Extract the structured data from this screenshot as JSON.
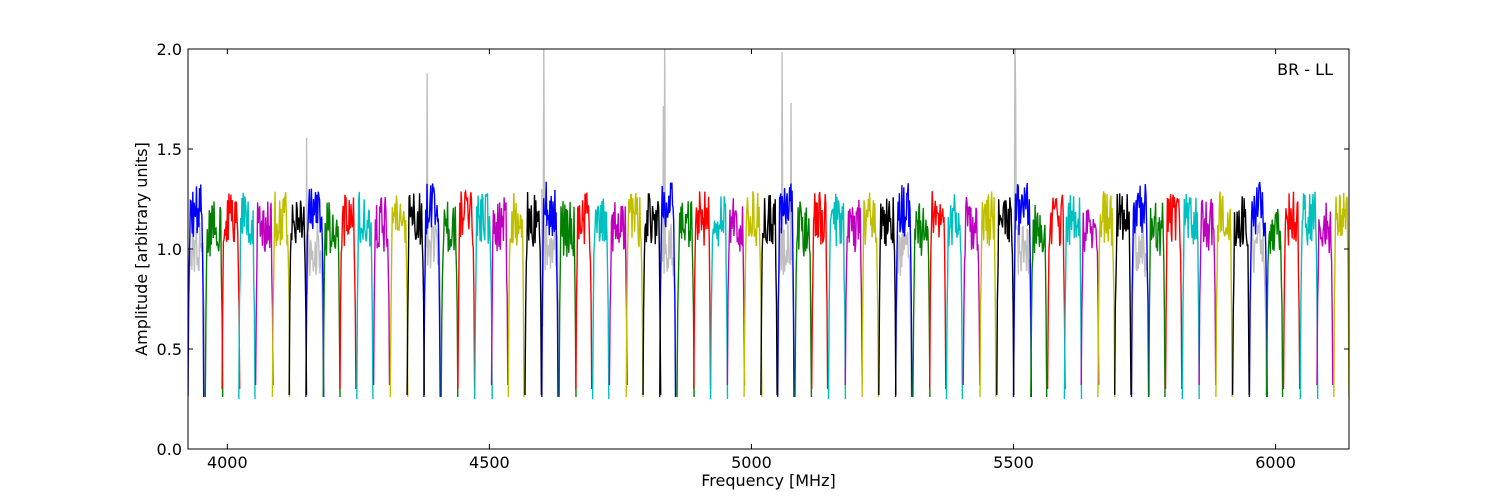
{
  "chart_data": {
    "type": "line",
    "title": "",
    "annotation": "BR - LL",
    "xlabel": "Frequency [MHz]",
    "ylabel": "Amplitude [arbitrary units]",
    "xlim": [
      3925,
      6140
    ],
    "ylim": [
      0.0,
      2.0
    ],
    "x_ticks": [
      4000,
      4500,
      5000,
      5500,
      6000
    ],
    "y_ticks": [
      0.0,
      0.5,
      1.0,
      1.5,
      2.0
    ],
    "x_tick_labels": [
      "4000",
      "4500",
      "5000",
      "5500",
      "6000"
    ],
    "y_tick_labels": [
      "0.0",
      "0.5",
      "1.0",
      "1.5",
      "2.0"
    ],
    "grid": false,
    "legend": "none",
    "series": [
      {
        "color": "#bfbfbf",
        "role": "background",
        "x_start": 3925,
        "x_end": 6140,
        "band_width_mhz": 8,
        "baseline": 1.0,
        "trough": 0.27
      },
      {
        "color": "#0000ff",
        "x_start": 3925,
        "x_end": 6140,
        "band_width_mhz": 8,
        "baseline": 1.2,
        "trough": 0.26
      },
      {
        "color": "#008000",
        "x_start": 3958,
        "x_end": 6140,
        "band_width_mhz": 8,
        "baseline": 1.1,
        "trough": 0.26
      },
      {
        "color": "#ff0000",
        "x_start": 3990,
        "x_end": 6140,
        "band_width_mhz": 8,
        "baseline": 1.15,
        "trough": 0.3
      },
      {
        "color": "#00bfbf",
        "x_start": 4022,
        "x_end": 6140,
        "band_width_mhz": 8,
        "baseline": 1.15,
        "trough": 0.25
      },
      {
        "color": "#bf00bf",
        "x_start": 4054,
        "x_end": 6140,
        "band_width_mhz": 8,
        "baseline": 1.12,
        "trough": 0.32
      },
      {
        "color": "#bfbf00",
        "x_start": 4086,
        "x_end": 6140,
        "band_width_mhz": 8,
        "baseline": 1.15,
        "trough": 0.26
      },
      {
        "color": "#000000",
        "x_start": 4118,
        "x_end": 6140,
        "band_width_mhz": 8,
        "baseline": 1.15,
        "trough": 0.27
      }
    ]
  }
}
